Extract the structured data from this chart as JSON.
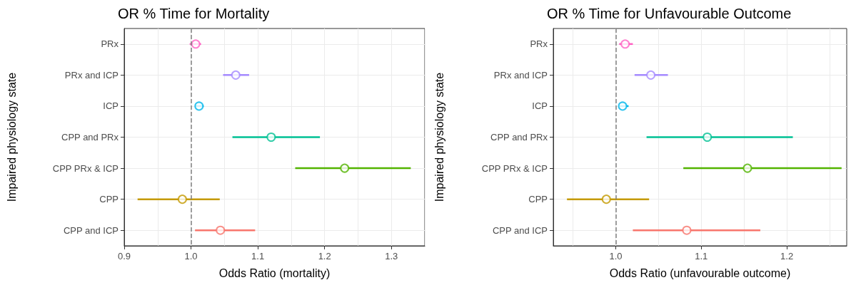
{
  "chart_data": [
    {
      "type": "scatter",
      "orientation": "horizontal",
      "title": "OR % Time for Mortality",
      "xlabel": "Odds Ratio (mortality)",
      "ylabel": "Impaired physiology state",
      "categories": [
        "PRx",
        "PRx and ICP",
        "ICP",
        "CPP and PRx",
        "CPP PRx & ICP",
        "CPP",
        "CPP and ICP"
      ],
      "values": [
        1.007,
        1.067,
        1.012,
        1.12,
        1.23,
        0.987,
        1.044
      ],
      "errors": [
        [
          0.998,
          1.015
        ],
        [
          1.048,
          1.087
        ],
        [
          1.006,
          1.019
        ],
        [
          1.062,
          1.193
        ],
        [
          1.156,
          1.329
        ],
        [
          0.92,
          1.043
        ],
        [
          1.006,
          1.096
        ]
      ],
      "colors": [
        "#ff61c3",
        "#a58aff",
        "#00b6eb",
        "#00c094",
        "#53b400",
        "#c49a00",
        "#f8766d"
      ],
      "xlim": [
        0.9,
        1.35
      ],
      "xticks": [
        0.9,
        {
          "value": 1,
          "label": "1.0"
        },
        1.1,
        1.2,
        1.3
      ],
      "ref_lines": [
        {
          "axis": "x",
          "value": 1,
          "color": "#808080",
          "line_style": "dashed"
        }
      ],
      "marker": "circle",
      "grid": true
    },
    {
      "type": "scatter",
      "orientation": "horizontal",
      "title": "OR % Time for Unfavourable Outcome",
      "xlabel": "Odds Ratio (unfavourable outcome)",
      "ylabel": "Impaired physiology state",
      "categories": [
        "PRx",
        "PRx and ICP",
        "ICP",
        "CPP and PRx",
        "CPP PRx & ICP",
        "CPP",
        "CPP and ICP"
      ],
      "values": [
        1.011,
        1.041,
        1.008,
        1.107,
        1.154,
        0.989,
        1.083
      ],
      "errors": [
        [
          1.004,
          1.02
        ],
        [
          1.022,
          1.061
        ],
        [
          1.004,
          1.015
        ],
        [
          1.036,
          1.207
        ],
        [
          1.079,
          1.264
        ],
        [
          0.943,
          1.039
        ],
        [
          1.02,
          1.169
        ]
      ],
      "colors": [
        "#ff61c3",
        "#a58aff",
        "#00b6eb",
        "#00c094",
        "#53b400",
        "#c49a00",
        "#f8766d"
      ],
      "xlim": [
        0.927,
        1.27
      ],
      "xticks": [
        {
          "value": 1,
          "label": "1.0"
        },
        1.1,
        1.2
      ],
      "ref_lines": [
        {
          "axis": "x",
          "value": 1,
          "color": "#808080",
          "line_style": "dashed"
        }
      ],
      "marker": "circle",
      "grid": true
    }
  ]
}
